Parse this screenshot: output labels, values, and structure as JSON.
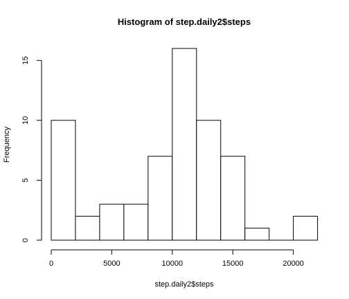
{
  "chart_data": {
    "type": "bar",
    "title": "Histogram of step.daily2$steps",
    "xlabel": "step.daily2$steps",
    "ylabel": "Frequency",
    "bins": [
      {
        "start": 0,
        "end": 2000,
        "count": 10
      },
      {
        "start": 2000,
        "end": 4000,
        "count": 2
      },
      {
        "start": 4000,
        "end": 6000,
        "count": 3
      },
      {
        "start": 6000,
        "end": 8000,
        "count": 3
      },
      {
        "start": 8000,
        "end": 10000,
        "count": 7
      },
      {
        "start": 10000,
        "end": 12000,
        "count": 16
      },
      {
        "start": 12000,
        "end": 14000,
        "count": 10
      },
      {
        "start": 14000,
        "end": 16000,
        "count": 7
      },
      {
        "start": 16000,
        "end": 18000,
        "count": 1
      },
      {
        "start": 18000,
        "end": 20000,
        "count": 0
      },
      {
        "start": 20000,
        "end": 22000,
        "count": 2
      }
    ],
    "xticks": [
      0,
      5000,
      10000,
      15000,
      20000
    ],
    "yticks": [
      0,
      5,
      10,
      15
    ],
    "xlim": [
      0,
      22000
    ],
    "ylim": [
      0,
      16
    ],
    "grid": false,
    "legend": "none"
  }
}
